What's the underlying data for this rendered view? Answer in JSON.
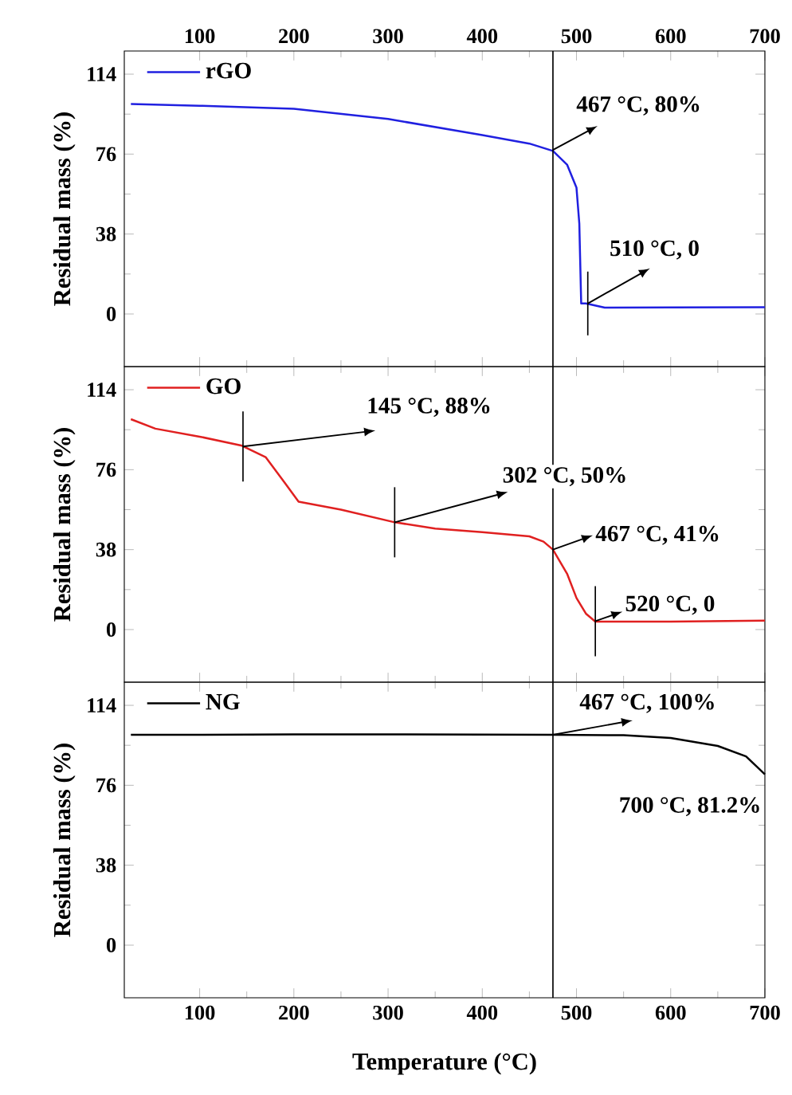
{
  "chart_data": [
    {
      "type": "line",
      "ylabel": "Residual mass (%)",
      "xlim": [
        20,
        700
      ],
      "xticks": [
        100,
        200,
        300,
        400,
        500,
        600,
        700
      ],
      "ylim": [
        -25,
        125
      ],
      "yticks": [
        0,
        38,
        76,
        114
      ],
      "legend": "top left",
      "grid": false,
      "series": [
        {
          "name": "rGO",
          "color": "#2020e0",
          "x": [
            27,
            100,
            200,
            300,
            400,
            450,
            475,
            490,
            500,
            503,
            505,
            510,
            530,
            600,
            700
          ],
          "values": [
            99.8,
            99,
            97.5,
            92.7,
            85,
            81,
            77.5,
            71,
            60,
            43,
            5,
            5,
            3,
            3.1,
            3.2
          ]
        }
      ],
      "ref_lines": [
        {
          "axis": "x",
          "value": 475
        }
      ],
      "annotations": [
        {
          "text": "467 °C, 80%",
          "x": 475,
          "y": 78
        },
        {
          "text": "510 °C, 0",
          "x": 512,
          "y": 5
        }
      ]
    },
    {
      "type": "line",
      "ylabel": "Residual mass (%)",
      "xlim": [
        20,
        700
      ],
      "xticks": [
        100,
        200,
        300,
        400,
        500,
        600,
        700
      ],
      "ylim": [
        -25,
        125
      ],
      "yticks": [
        0,
        38,
        76,
        114
      ],
      "legend": "top left",
      "grid": false,
      "tick_labels": "y",
      "series": [
        {
          "name": "GO",
          "color": "#e02020",
          "x": [
            27,
            53,
            100,
            145,
            170,
            190,
            205,
            250,
            307,
            350,
            400,
            450,
            465,
            475,
            490,
            500,
            510,
            520,
            600,
            700
          ],
          "values": [
            100,
            95.5,
            91.7,
            87.4,
            82,
            70,
            60.8,
            57,
            51,
            48,
            46.3,
            44.3,
            41.8,
            38,
            26.6,
            15,
            7.6,
            3.8,
            3.8,
            4.3
          ]
        }
      ],
      "ref_lines": [
        {
          "axis": "x",
          "value": 475
        }
      ],
      "annotations": [
        {
          "text": "145 °C, 88%",
          "x": 146,
          "y": 87
        },
        {
          "text": "302 °C, 50%",
          "x": 307,
          "y": 51
        },
        {
          "text": "467 °C, 41%",
          "x": 475,
          "y": 38
        },
        {
          "text": "520 °C, 0",
          "x": 520,
          "y": 4
        }
      ]
    },
    {
      "type": "line",
      "ylabel": "Residual mass (%)",
      "xlabel": "Temperature (°C)",
      "xlim": [
        20,
        700
      ],
      "xticks": [
        100,
        200,
        300,
        400,
        500,
        600,
        700
      ],
      "ylim": [
        -25,
        125
      ],
      "yticks": [
        0,
        38,
        76,
        114
      ],
      "legend": "top left",
      "grid": false,
      "series": [
        {
          "name": "NG",
          "color": "#000000",
          "x": [
            27,
            100,
            200,
            300,
            400,
            475,
            550,
            600,
            650,
            680,
            700
          ],
          "values": [
            100,
            100,
            100.2,
            100.2,
            100.1,
            100,
            99.8,
            98.5,
            94.7,
            89.7,
            81.2
          ]
        }
      ],
      "ref_lines": [
        {
          "axis": "x",
          "value": 475
        }
      ],
      "annotations": [
        {
          "text": "467 °C,  100%",
          "x": 475,
          "y": 100
        },
        {
          "text": "700 °C, 81.2%",
          "x": 700,
          "y": 81.2
        }
      ]
    }
  ]
}
